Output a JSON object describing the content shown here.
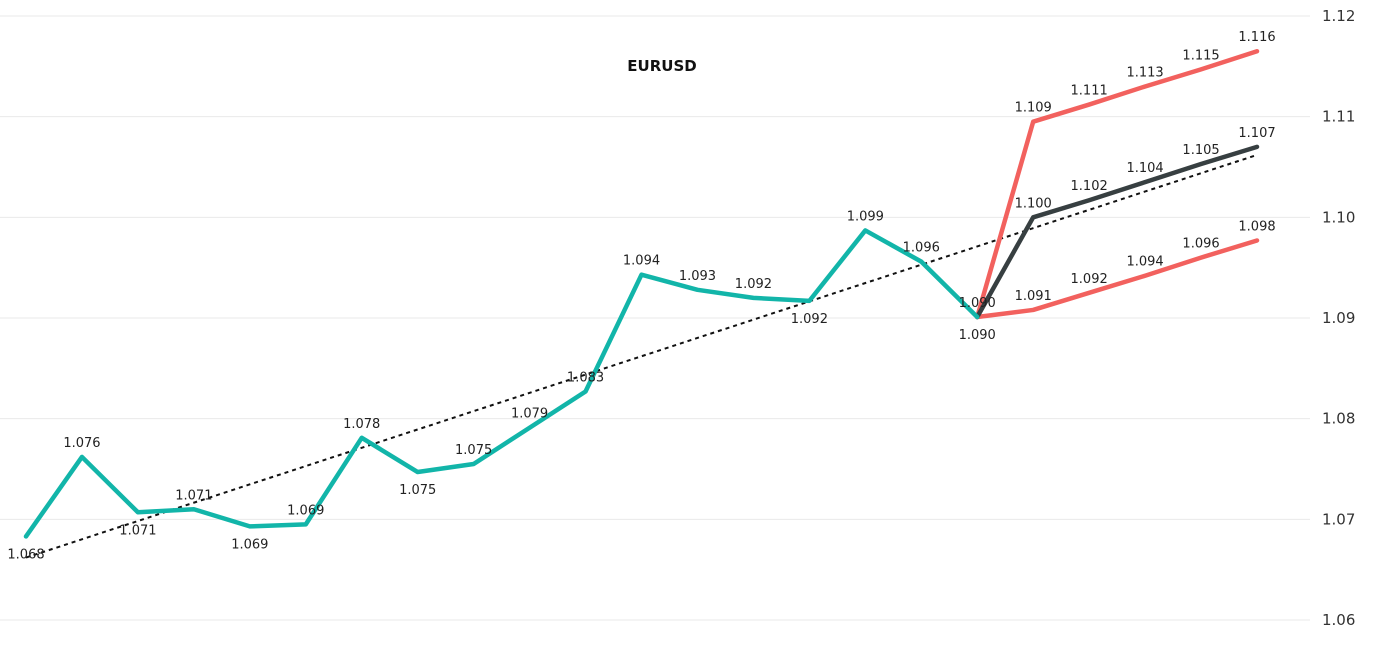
{
  "chart_data": {
    "type": "line",
    "title": "EURUSD",
    "xlabel": "",
    "ylabel": "",
    "ylim": [
      1.06,
      1.12
    ],
    "yticks": [
      "1.06",
      "1.07",
      "1.08",
      "1.09",
      "1.10",
      "1.11",
      "1.12"
    ],
    "grid": true,
    "legend": "none",
    "colors": {
      "actual": "#12b5a9",
      "forecast": "#373f41",
      "upper": "#f2615e",
      "lower": "#f2615e",
      "trend": "#111111"
    },
    "series": [
      {
        "key": "actual",
        "start_index": 0,
        "values": [
          1.0683,
          1.0762,
          1.0707,
          1.071,
          1.0693,
          1.0695,
          1.0781,
          1.0747,
          1.0755,
          1.0791,
          1.0827,
          1.0943,
          1.0928,
          1.092,
          1.0917,
          1.0987,
          1.0956,
          1.0901
        ],
        "labels": [
          "1.068",
          "1.076",
          "1.071",
          "1.071",
          "1.069",
          "1.069",
          "1.078",
          "1.075",
          "1.075",
          "1.079",
          "1.083",
          "1.094",
          "1.093",
          "1.092",
          "1.092",
          "1.099",
          "1.096",
          "1.090"
        ],
        "label_pos": [
          "below",
          "above",
          "below",
          "above",
          "below",
          "above",
          "above",
          "below",
          "above",
          "above",
          "above",
          "above",
          "above",
          "above",
          "below",
          "above",
          "above",
          "below"
        ]
      },
      {
        "key": "forecast",
        "start_index": 17,
        "values": [
          1.0901,
          1.1,
          1.1017,
          1.1035,
          1.1053,
          1.107
        ],
        "labels": [
          "",
          "1.100",
          "1.102",
          "1.104",
          "1.105",
          "1.107"
        ],
        "label_pos": [
          "none",
          "above",
          "above",
          "above",
          "above",
          "above"
        ]
      },
      {
        "key": "upper",
        "start_index": 17,
        "values": [
          1.0901,
          1.1095,
          1.1112,
          1.113,
          1.1147,
          1.1165
        ],
        "labels": [
          "",
          "1.109",
          "1.111",
          "1.113",
          "1.115",
          "1.116"
        ],
        "label_pos": [
          "none",
          "above",
          "above",
          "above",
          "above",
          "above"
        ]
      },
      {
        "key": "lower",
        "start_index": 17,
        "values": [
          1.0901,
          1.0908,
          1.0925,
          1.0942,
          1.096,
          1.0977
        ],
        "labels": [
          "1.090",
          "1.091",
          "1.092",
          "1.094",
          "1.096",
          "1.098"
        ],
        "label_pos": [
          "above",
          "above",
          "above",
          "above",
          "above",
          "above"
        ]
      }
    ],
    "trendline": {
      "start": [
        0,
        1.0662
      ],
      "end": [
        22,
        1.1062
      ],
      "style": "dashed"
    }
  }
}
